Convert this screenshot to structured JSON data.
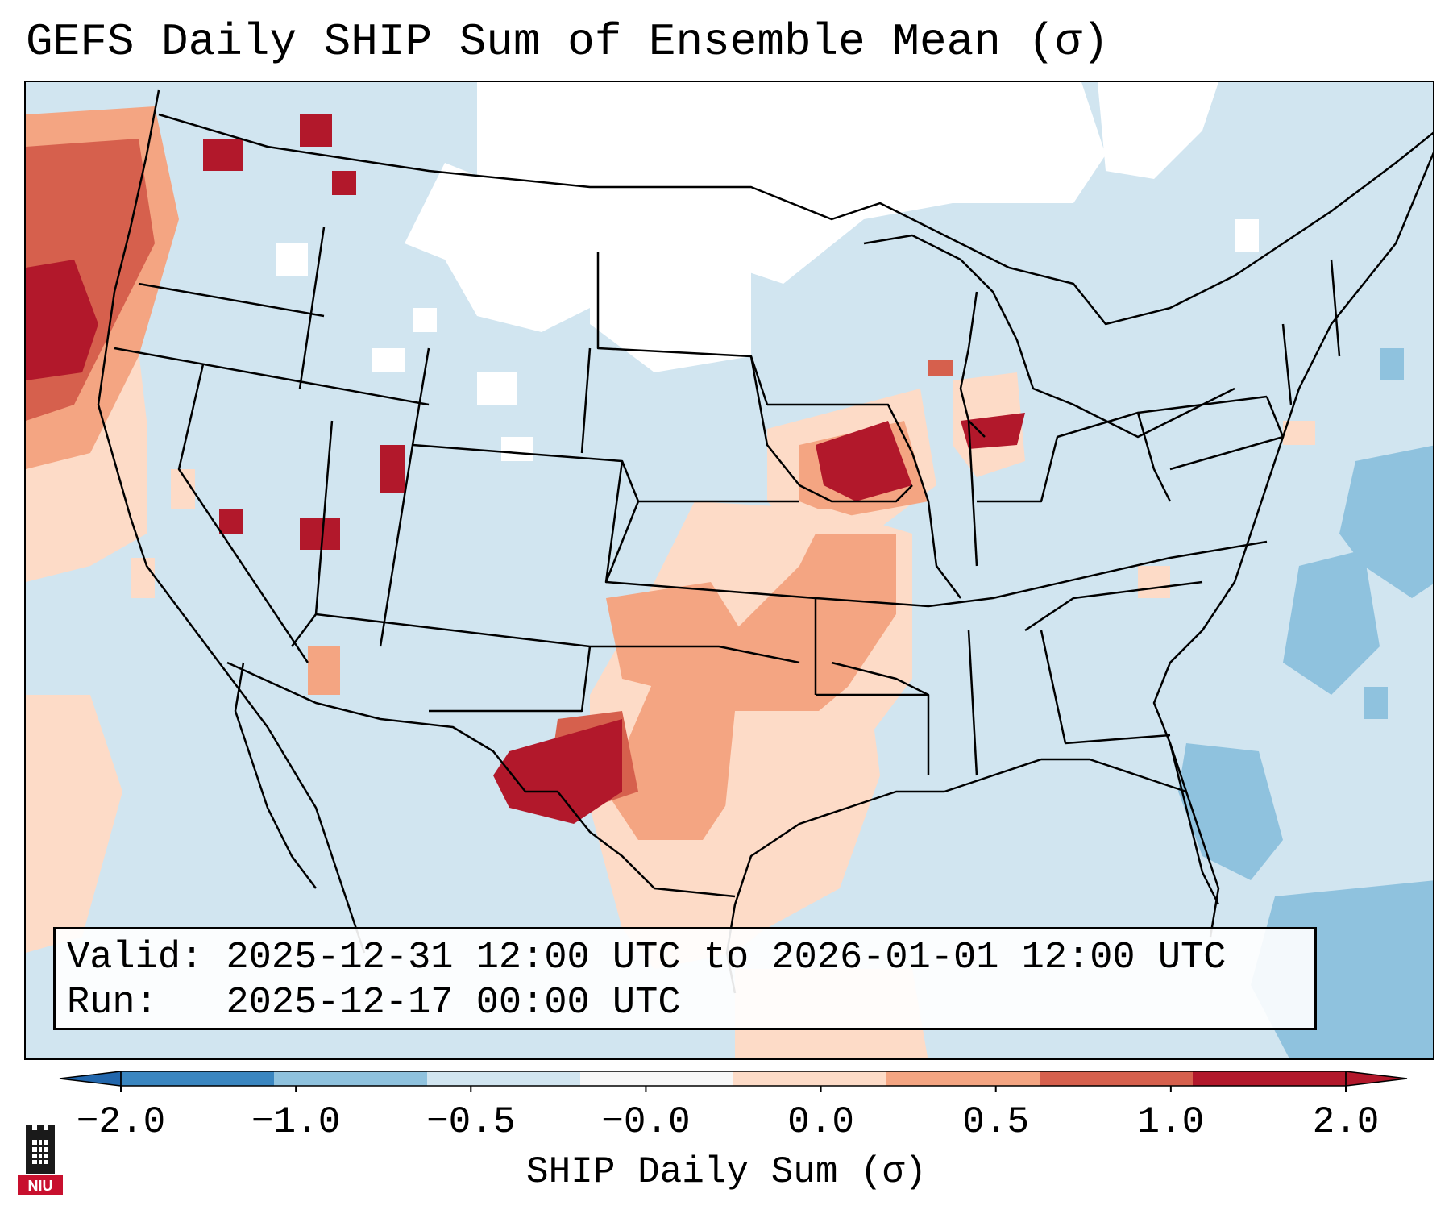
{
  "title": "GEFS Daily SHIP Sum of Ensemble Mean (σ)",
  "info": {
    "valid_label": "Valid:",
    "valid_value": "2025-12-31 12:00 UTC to 2026-01-01 12:00 UTC",
    "run_label": "Run:",
    "run_value": "2025-12-17 00:00 UTC"
  },
  "colorbar": {
    "label": "SHIP Daily Sum (σ)",
    "ticks": [
      "−2.0",
      "−1.0",
      "−0.5",
      "−0.0",
      "0.0",
      "0.5",
      "1.0",
      "2.0"
    ],
    "colors": [
      "#3a86c0",
      "#8fc2de",
      "#d1e5f0",
      "#f7f7f7",
      "#fddbc7",
      "#f4a582",
      "#d6604d",
      "#b2182b"
    ],
    "extend_low_color": "#2166ac",
    "extend_high_color": "#b2182b"
  },
  "map": {
    "region": "Contiguous United States",
    "background_color": "#d1e5f0",
    "neutral_color": "#ffffff",
    "positive_regions": [
      "Pacific Northwest coast / offshore",
      "Illinois-Iowa border",
      "northern Indiana",
      "Oklahoma and Arkansas",
      "central and west Texas",
      "northwest Gulf of Mexico",
      "northern Mexico",
      "Baja California offshore"
    ],
    "negative_regions": [
      "western Atlantic",
      "Florida Atlantic coast",
      "Caribbean"
    ]
  },
  "logo": {
    "text": "NIU",
    "color": "#c8102e"
  }
}
